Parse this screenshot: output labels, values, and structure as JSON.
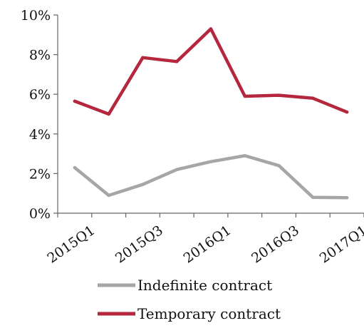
{
  "chart_data": {
    "type": "line",
    "categories": [
      "2015Q1",
      "2015Q2",
      "2015Q3",
      "2015Q4",
      "2016Q1",
      "2016Q2",
      "2016Q3",
      "2016Q4",
      "2017Q1"
    ],
    "x_tick_labels": [
      "2015Q1",
      "2015Q3",
      "2016Q1",
      "2016Q3",
      "2017Q1"
    ],
    "y_tick_labels": [
      "0%",
      "2%",
      "4%",
      "6%",
      "8%",
      "10%"
    ],
    "ylim": [
      0,
      10
    ],
    "y_unit": "%",
    "grid": false,
    "legend_position": "bottom",
    "series": [
      {
        "name": "Indefinite contract",
        "color": "#a6a6a6",
        "values": [
          2.3,
          0.9,
          1.45,
          2.2,
          2.6,
          2.9,
          2.4,
          0.8,
          0.78
        ]
      },
      {
        "name": "Temporary contract",
        "color": "#b5273d",
        "values": [
          5.65,
          5.0,
          7.85,
          7.65,
          9.3,
          5.9,
          5.95,
          5.8,
          5.1
        ]
      }
    ]
  }
}
